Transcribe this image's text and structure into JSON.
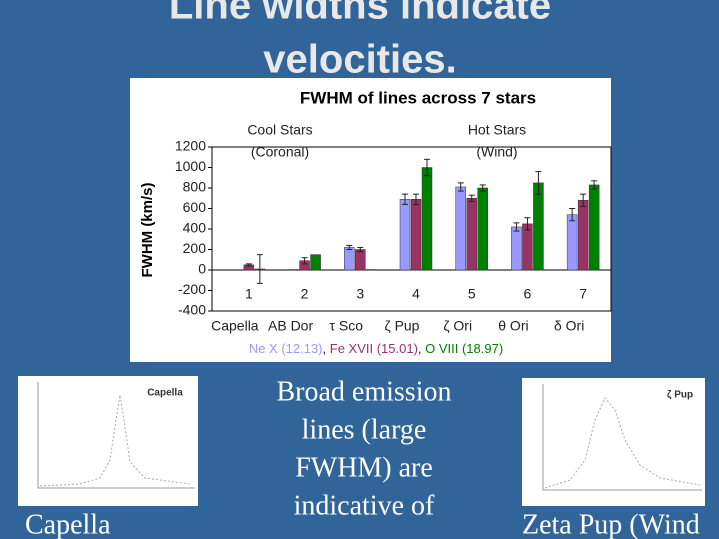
{
  "slide": {
    "title_lines": [
      "Line widths indicate",
      "velocities."
    ],
    "body_lines": [
      "Broad emission",
      "lines (large",
      "FWHM) are",
      "indicative of"
    ],
    "images": [
      {
        "label": "Capella",
        "caption": "Capella"
      },
      {
        "label": "ζ Pup",
        "caption": "Zeta Pup (Wind"
      }
    ]
  },
  "chart_data": {
    "type": "bar",
    "title": "FWHM of lines across 7 stars",
    "y_label": "FWHM (km/s)",
    "categories": [
      "1",
      "2",
      "3",
      "4",
      "5",
      "6",
      "7"
    ],
    "star_names": [
      "Capella",
      "AB Dor",
      "τ Sco",
      "ζ Pup",
      "ζ Ori",
      "θ Ori",
      "δ Ori"
    ],
    "annotations": [
      {
        "lines": [
          "Cool Stars",
          "(Coronal)"
        ]
      },
      {
        "lines": [
          "Hot Stars",
          "(Wind)"
        ]
      }
    ],
    "legend_separator": ", ",
    "series": [
      {
        "name": "Ne X (12.13)",
        "color": "#9999ff",
        "values": [
          null,
          5,
          220,
          690,
          810,
          420,
          540
        ],
        "errors": [
          null,
          null,
          20,
          50,
          40,
          40,
          60
        ]
      },
      {
        "name": "Fe XVII (15.01)",
        "color": "#993366",
        "values": [
          50,
          90,
          200,
          690,
          700,
          450,
          680
        ],
        "errors": [
          10,
          30,
          20,
          50,
          30,
          60,
          60
        ]
      },
      {
        "name": "O VIII (18.97)",
        "color": "#008000",
        "values": [
          10,
          150,
          5,
          1000,
          800,
          850,
          830
        ],
        "errors": [
          140,
          null,
          null,
          80,
          30,
          110,
          40
        ]
      }
    ],
    "ylim": [
      -400,
      1200
    ],
    "yticks": [
      -400,
      -200,
      0,
      200,
      400,
      600,
      800,
      1000,
      1200
    ],
    "grid": false
  }
}
